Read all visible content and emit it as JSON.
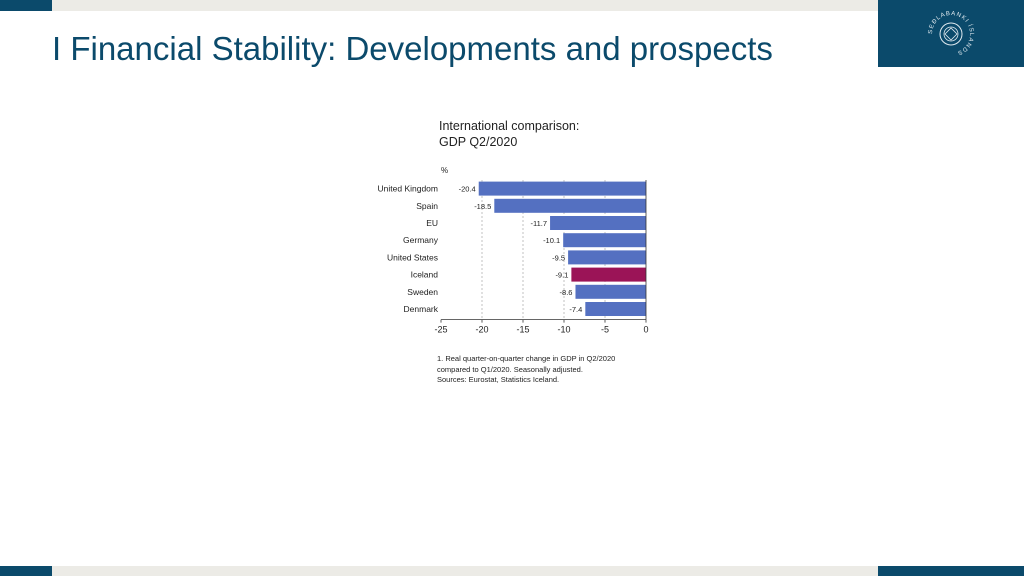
{
  "slide": {
    "title": "I Financial Stability: Developments and prospects",
    "logo_text": "SEÐLABANKI ÍSLANDS",
    "colors": {
      "brand": "#0b4a6b",
      "band": "#ecebe6"
    }
  },
  "chart_data": {
    "type": "bar",
    "orientation": "horizontal",
    "title_lines": [
      "International comparison:",
      "GDP Q2/2020"
    ],
    "unit_label": "%",
    "categories": [
      "United Kingdom",
      "Spain",
      "EU",
      "Germany",
      "United States",
      "Iceland",
      "Sweden",
      "Denmark"
    ],
    "values": [
      -20.4,
      -18.5,
      -11.7,
      -10.1,
      -9.5,
      -9.1,
      -8.6,
      -7.4
    ],
    "value_labels": [
      "-20.4",
      "-18.5",
      "-11.7",
      "-10.1",
      "-9.5",
      "-9.1",
      "-8.6",
      "-7.4"
    ],
    "xlim": [
      -25,
      0
    ],
    "xticks": [
      "-25",
      "-20",
      "-15",
      "-10",
      "-5",
      "0"
    ],
    "grid": "vertical dashed",
    "colors": {
      "default": "#5470c1",
      "highlight": "#9b1457"
    },
    "highlight": "Iceland",
    "footnote_lines": [
      "1. Real quarter-on-quarter change in GDP in Q2/2020",
      "compared to Q1/2020. Seasonally adjusted.",
      "Sources: Eurostat, Statistics Iceland."
    ]
  }
}
